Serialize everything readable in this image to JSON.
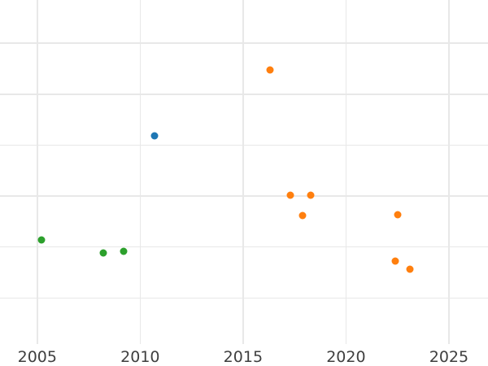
{
  "chart_data": {
    "type": "scatter",
    "title": "",
    "xlabel": "",
    "ylabel": "",
    "grid": true,
    "legend": "none",
    "x_ticks": [
      2005,
      2010,
      2015,
      2020,
      2025
    ],
    "x_tick_labels": [
      "2005",
      "2010",
      "2015",
      "2020",
      "2025"
    ],
    "x_range_visible": [
      2003.19,
      2026.9
    ],
    "y_axis_note": "y-axis tick labels are outside the visible crop; y values given in gridline units (one unit per horizontal gridline, 0 = lowest visible gridline)",
    "y_gridline_units": [
      0,
      1,
      2,
      3,
      4,
      5
    ],
    "y_range_visible": [
      -0.906,
      5.85
    ],
    "marker_diameter_px": 9,
    "series": [
      {
        "name": "green-series",
        "color": "#2ca02c",
        "points": [
          {
            "x": 2005.2,
            "y": 1.14
          },
          {
            "x": 2008.2,
            "y": 0.88
          },
          {
            "x": 2009.2,
            "y": 0.92
          }
        ]
      },
      {
        "name": "blue-series",
        "color": "#1f77b4",
        "points": [
          {
            "x": 2010.7,
            "y": 3.19
          }
        ]
      },
      {
        "name": "orange-series",
        "color": "#ff7f0e",
        "points": [
          {
            "x": 2016.3,
            "y": 4.48
          },
          {
            "x": 2017.3,
            "y": 2.01
          },
          {
            "x": 2018.3,
            "y": 2.01
          },
          {
            "x": 2017.9,
            "y": 1.62
          },
          {
            "x": 2022.5,
            "y": 1.64
          },
          {
            "x": 2022.4,
            "y": 0.72
          },
          {
            "x": 2023.1,
            "y": 0.57
          }
        ]
      }
    ],
    "colors": {
      "background": "#ffffff",
      "gridline": "#e8e8e8",
      "tick_label": "#3f3f3f"
    }
  }
}
